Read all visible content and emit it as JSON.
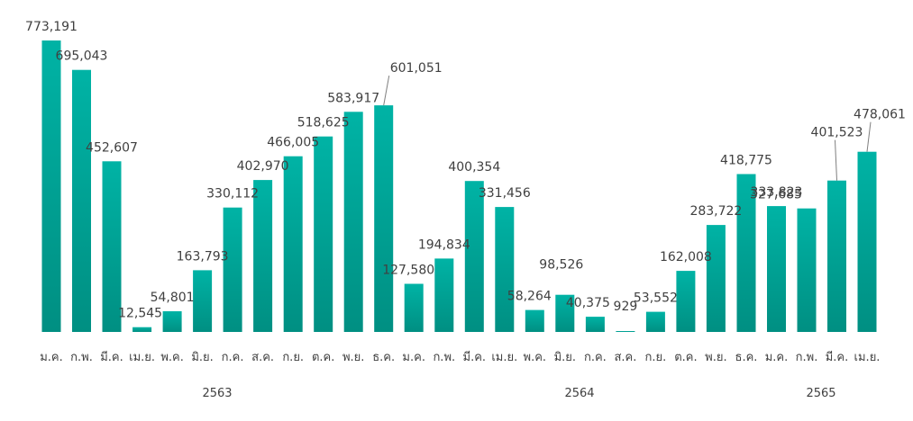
{
  "chart_data": {
    "type": "bar",
    "categories": [
      "ม.ค.",
      "ก.พ.",
      "มี.ค.",
      "เม.ย.",
      "พ.ค.",
      "มิ.ย.",
      "ก.ค.",
      "ส.ค.",
      "ก.ย.",
      "ต.ค.",
      "พ.ย.",
      "ธ.ค.",
      "ม.ค.",
      "ก.พ.",
      "มี.ค.",
      "เม.ย.",
      "พ.ค.",
      "มิ.ย.",
      "ก.ค.",
      "ส.ค.",
      "ก.ย.",
      "ต.ค.",
      "พ.ย.",
      "ธ.ค.",
      "ม.ค.",
      "ก.พ.",
      "มี.ค.",
      "เม.ย."
    ],
    "values": [
      773191,
      695043,
      452607,
      12545,
      54801,
      163793,
      330112,
      402970,
      466005,
      518625,
      583917,
      601051,
      127580,
      194834,
      400354,
      331456,
      58264,
      98526,
      40375,
      929,
      53552,
      162008,
      283722,
      418775,
      333823,
      327685,
      401523,
      478061
    ],
    "value_labels": [
      "773,191",
      "695,043",
      "452,607",
      "12,545",
      "54,801",
      "163,793",
      "330,112",
      "402,970",
      "466,005",
      "518,625",
      "583,917",
      "601,051",
      "127,580",
      "194,834",
      "400,354",
      "331,456",
      "58,264",
      "98,526",
      "40,375",
      "929",
      "53,552",
      "162,008",
      "283,722",
      "418,775",
      "333,823",
      "327,685",
      "401,523",
      "478,061"
    ],
    "groups": [
      {
        "label": "2563",
        "start": 0,
        "end": 11
      },
      {
        "label": "2564",
        "start": 12,
        "end": 23
      },
      {
        "label": "2565",
        "start": 24,
        "end": 27
      }
    ],
    "ylim": [
      0,
      773191
    ],
    "grid": false,
    "legend": "none",
    "colors": {
      "bar_top": "#00B3A5",
      "bar_bottom": "#008F82",
      "text": "#404040",
      "leader": "#7f7f7f"
    }
  }
}
